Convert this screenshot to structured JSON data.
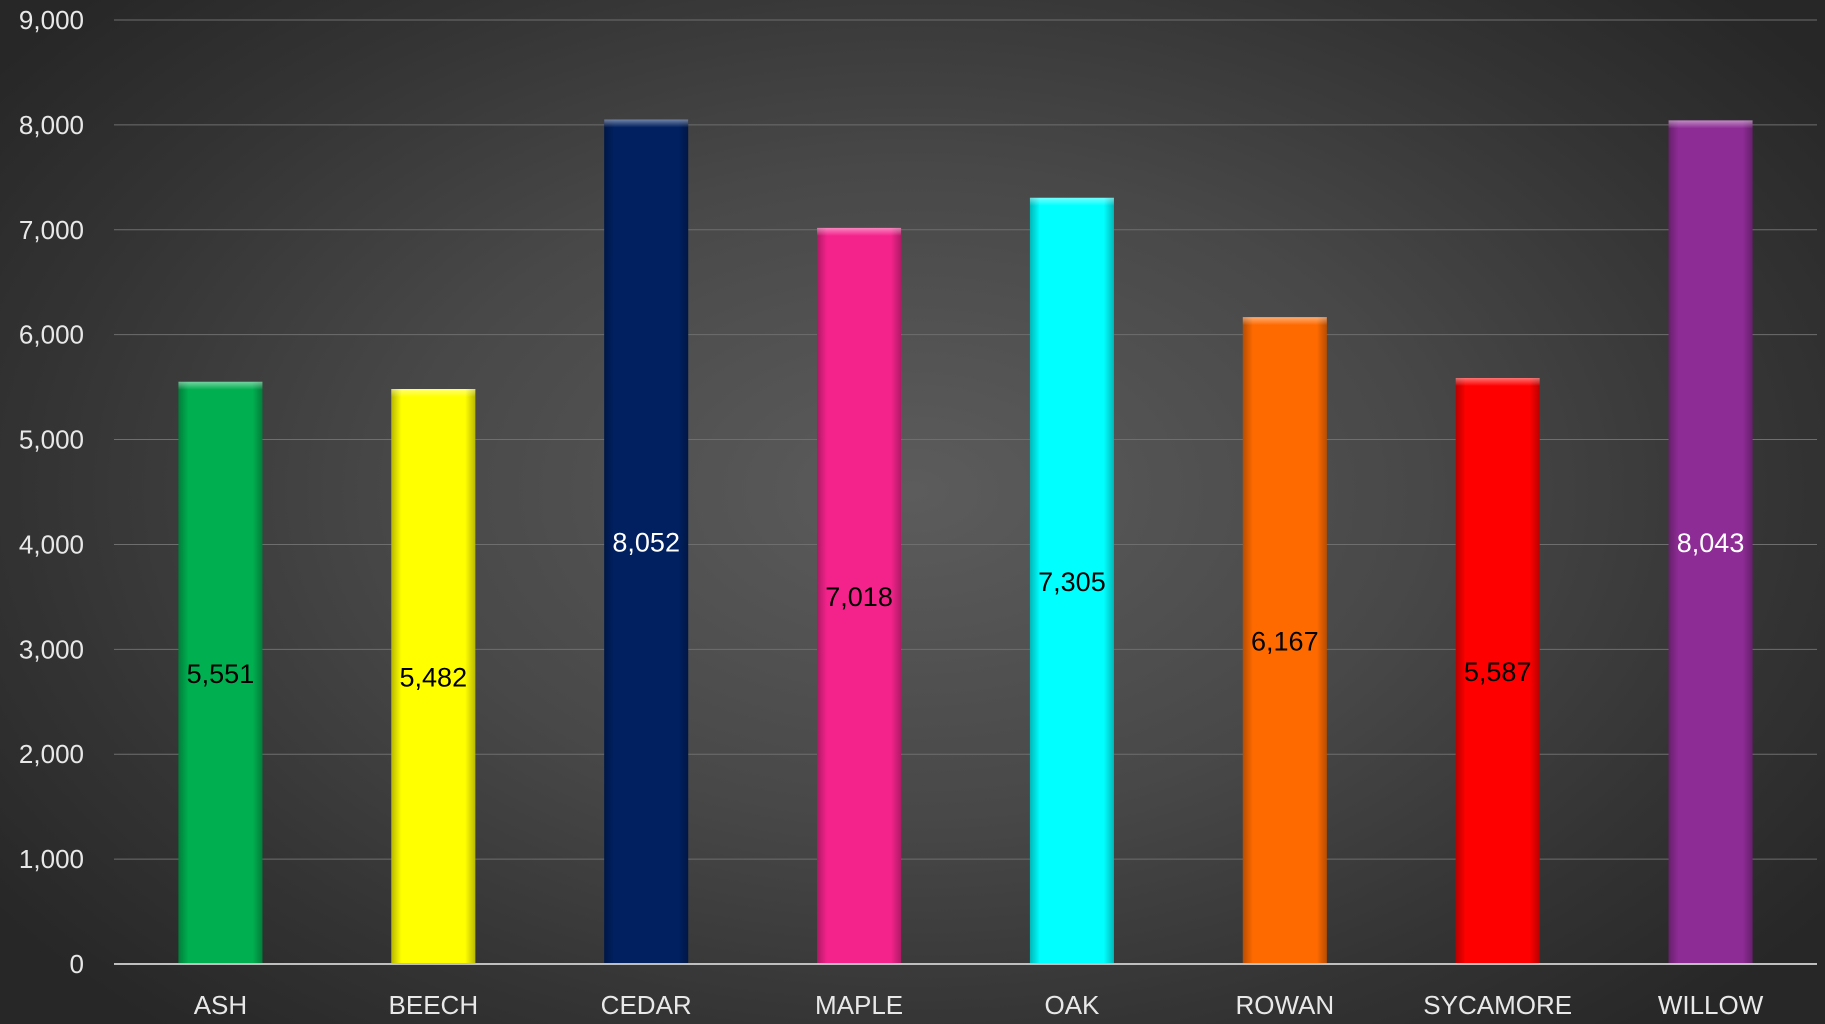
{
  "chart_data": {
    "type": "bar",
    "categories": [
      "ASH",
      "BEECH",
      "CEDAR",
      "MAPLE",
      "OAK",
      "ROWAN",
      "SYCAMORE",
      "WILLOW"
    ],
    "values": [
      5551,
      5482,
      8052,
      7018,
      7305,
      6167,
      5587,
      8043
    ],
    "data_labels": [
      "5,551",
      "5,482",
      "8,052",
      "7,018",
      "7,305",
      "6,167",
      "5,587",
      "8,043"
    ],
    "bar_colors": [
      "#00b050",
      "#ffff00",
      "#002060",
      "#f4238c",
      "#00ffff",
      "#ff6a00",
      "#ff0000",
      "#8e2c96"
    ],
    "label_colors": [
      "#000000",
      "#000000",
      "#ffffff",
      "#000000",
      "#000000",
      "#000000",
      "#000000",
      "#ffffff"
    ],
    "ylim": [
      0,
      9000
    ],
    "yticks": [
      0,
      1000,
      2000,
      3000,
      4000,
      5000,
      6000,
      7000,
      8000,
      9000
    ],
    "ytick_labels": [
      "0",
      "1,000",
      "2,000",
      "3,000",
      "4,000",
      "5,000",
      "6,000",
      "7,000",
      "8,000",
      "9,000"
    ],
    "grid": true,
    "legend": "none"
  }
}
